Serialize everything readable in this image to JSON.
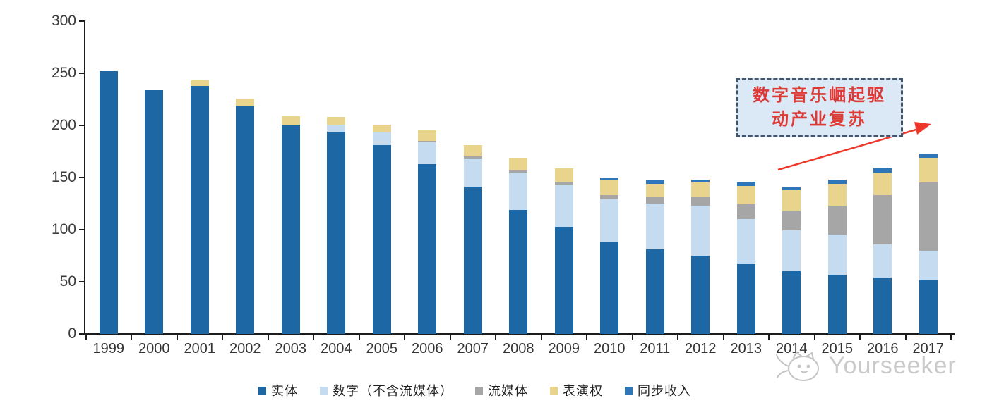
{
  "chart_data": {
    "type": "bar",
    "stacked": true,
    "title": "",
    "categories": [
      "1999",
      "2000",
      "2001",
      "2002",
      "2003",
      "2004",
      "2005",
      "2006",
      "2007",
      "2008",
      "2009",
      "2010",
      "2011",
      "2012",
      "2013",
      "2014",
      "2015",
      "2016",
      "2017"
    ],
    "series": [
      {
        "key": "physical",
        "name": "实体",
        "color": "#1d67a5",
        "values": [
          252,
          234,
          238,
          219,
          201,
          194,
          181,
          163,
          141,
          119,
          103,
          88,
          81,
          75,
          67,
          60,
          57,
          54,
          52
        ]
      },
      {
        "key": "digital-excl-streaming",
        "name": "数字（不含流媒体）",
        "color": "#c5dbef",
        "values": [
          0,
          0,
          0,
          0,
          0,
          7,
          12,
          21,
          27,
          36,
          40,
          41,
          44,
          48,
          43,
          39,
          38,
          32,
          28
        ]
      },
      {
        "key": "streaming",
        "name": "流媒体",
        "color": "#a6a6a6",
        "values": [
          0,
          0,
          0,
          0,
          0,
          0,
          0,
          1,
          2,
          2,
          3,
          4,
          6,
          8,
          14,
          19,
          28,
          47,
          65
        ]
      },
      {
        "key": "performance-rights",
        "name": "表演权",
        "color": "#e9d48e",
        "values": [
          0,
          0,
          5,
          7,
          8,
          7,
          8,
          10,
          11,
          12,
          13,
          14,
          13,
          14,
          18,
          20,
          21,
          22,
          24
        ]
      },
      {
        "key": "sync-revenue",
        "name": "同步收入",
        "color": "#2e76b8",
        "values": [
          0,
          0,
          0,
          0,
          0,
          0,
          0,
          0,
          0,
          0,
          0,
          3,
          3,
          3,
          3,
          3,
          4,
          4,
          4
        ]
      }
    ],
    "xlabel": "",
    "ylabel": "",
    "ylim": [
      0,
      300
    ],
    "y_ticks": [
      0,
      50,
      100,
      150,
      200,
      250,
      300
    ],
    "grid": false,
    "legend_position": "bottom"
  },
  "annotation": {
    "line1": "数字音乐崛起驱",
    "line2": "动产业复苏",
    "text_color": "#dd3a36",
    "border_color": "#44546a",
    "fill_color": "#dbe8f6",
    "arrow_color": "#ee372b"
  },
  "watermark": {
    "text": "Yourseeker",
    "logo": "cat-doodle-icon",
    "color": "#c6c6c6"
  },
  "axis": {
    "line_color": "#1c1c1c",
    "label_color": "#3c3c3c"
  }
}
